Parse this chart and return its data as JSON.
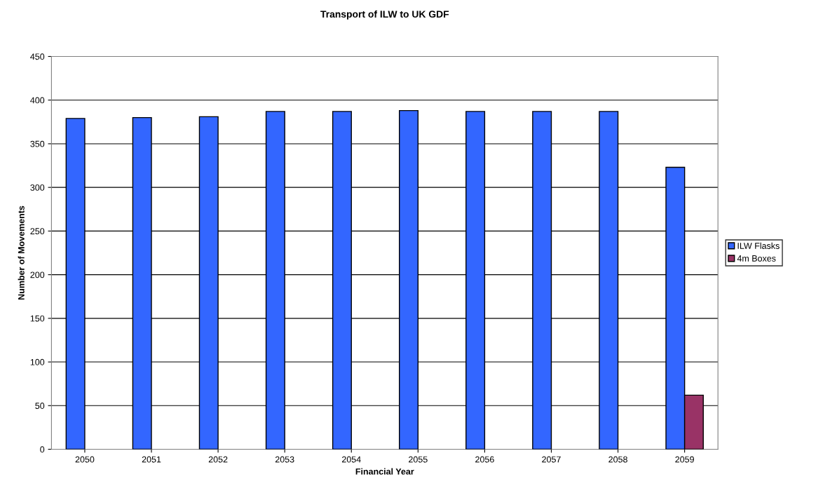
{
  "chart_data": {
    "type": "bar",
    "title": "Transport of ILW to UK GDF",
    "xlabel": "Financial Year",
    "ylabel": "Number of Movements",
    "categories": [
      "2050",
      "2051",
      "2052",
      "2053",
      "2054",
      "2055",
      "2056",
      "2057",
      "2058",
      "2059"
    ],
    "series": [
      {
        "name": "ILW Flasks",
        "color": "#3366ff",
        "values": [
          379,
          380,
          381,
          387,
          387,
          388,
          387,
          387,
          387,
          323
        ]
      },
      {
        "name": "4m Boxes",
        "color": "#993366",
        "values": [
          null,
          null,
          null,
          null,
          null,
          null,
          null,
          null,
          null,
          62
        ]
      }
    ],
    "ylim": [
      0,
      450
    ],
    "yticks": [
      0,
      50,
      100,
      150,
      200,
      250,
      300,
      350,
      400,
      450
    ],
    "grid": "y",
    "legend": "right"
  }
}
